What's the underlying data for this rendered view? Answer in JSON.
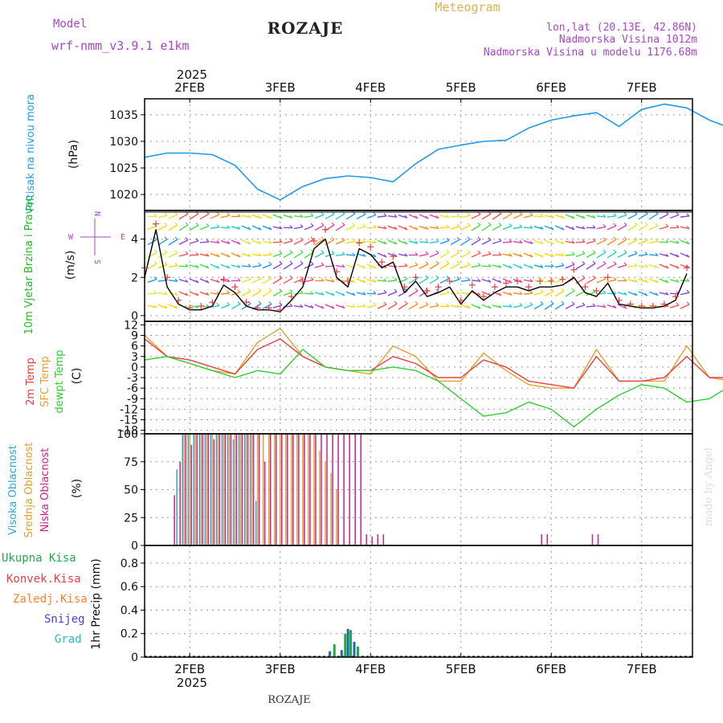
{
  "header": {
    "model_label": "Model",
    "model_name": "wrf-nmm_v3.9.1 e1km",
    "title": "ROZAJE",
    "subtitle": "Meteogram",
    "coords": "lon,lat (20.13E, 42.86N)",
    "elevation": "Nadmorska Visina 1012m",
    "model_elevation": "Nadmorska Visina u modelu 1176.68m"
  },
  "footer": {
    "station": "ROZAJE",
    "credit": "made by Angel"
  },
  "colors": {
    "pressure": "#1e9be6",
    "wind_label": "#22bb22",
    "temp2m": "#e84040",
    "sfc_temp": "#e0a030",
    "dewpt": "#33cc33",
    "high_cloud": "#2aa6d8",
    "mid_cloud": "#e0a030",
    "low_cloud": "#cc2288",
    "precip_total": "#22aa44",
    "precip_conv": "#e84040",
    "precip_frozen": "#ff8030",
    "snow": "#4444dd",
    "grad": "#22bbbb",
    "purple": "#aa44cc",
    "orange": "#e0b050"
  },
  "chart_data": [
    {
      "type": "line",
      "panel": "pressure",
      "ylabel": "Pritisak na nivou mora",
      "unit": "(hPa)",
      "ylim": [
        1017,
        1038
      ],
      "yticks": [
        1020,
        1025,
        1030,
        1035
      ],
      "x_day_start": 1.5,
      "x_step_days": 0.25,
      "series": [
        {
          "values": [
            1027,
            1027.8,
            1027.8,
            1027.5,
            1025.5,
            1021,
            1019,
            1021.5,
            1023,
            1023.5,
            1023.2,
            1022.4,
            1025.8,
            1028.5,
            1029.3,
            1030,
            1030.2,
            1032.5,
            1034,
            1034.8,
            1035.4,
            1032.8,
            1036,
            1037,
            1036.3,
            1034,
            1032.4,
            1032.8,
            1032.5,
            1031.2,
            1027.5
          ]
        }
      ]
    },
    {
      "type": "line",
      "panel": "wind",
      "ylabel": "10m Vjetar Brzina i Pravac",
      "unit": "(m/s)",
      "compass": [
        "N",
        "E",
        "S",
        "W"
      ],
      "ylim": [
        -0.3,
        5.5
      ],
      "yticks": [
        0,
        2,
        4
      ],
      "x_day_start": 1.5,
      "x_step_days": 0.125,
      "series": [
        {
          "name": "speed",
          "values": [
            2,
            4.5,
            1.5,
            0.6,
            0.3,
            0.3,
            0.5,
            1.6,
            1.2,
            0.5,
            0.3,
            0.3,
            0.2,
            0.8,
            1.5,
            3.5,
            4,
            2,
            1.5,
            3.5,
            3.2,
            2.5,
            2.8,
            1.2,
            1.8,
            1,
            1.2,
            1.5,
            0.6,
            1.3,
            0.8,
            1.2,
            1.5,
            1.5,
            1.3,
            1.5,
            1.5,
            1.6,
            2,
            1.2,
            1,
            1.7,
            0.6,
            0.5,
            0.4,
            0.4,
            0.5,
            0.8,
            2.2
          ]
        },
        {
          "name": "gust",
          "values": [
            2.5,
            4.8,
            2,
            0.8,
            0.4,
            0.5,
            0.7,
            1.9,
            1.5,
            0.7,
            0.4,
            0.4,
            0.3,
            1,
            1.8,
            3.9,
            4.5,
            2.3,
            1.8,
            3.8,
            3.6,
            2.8,
            3.1,
            1.5,
            2,
            1.3,
            1.5,
            1.8,
            0.8,
            1.6,
            1,
            1.5,
            1.7,
            1.8,
            1.5,
            1.8,
            1.8,
            1.9,
            2.4,
            1.5,
            1.3,
            2,
            0.8,
            0.6,
            0.5,
            0.5,
            0.6,
            1,
            2.5
          ]
        }
      ]
    },
    {
      "type": "line",
      "panel": "temperature",
      "ylabel": "2m Temp / SFC Temp / dewpt Temp",
      "unit": "(C)",
      "ylim": [
        -19,
        13
      ],
      "yticks": [
        12,
        9,
        6,
        3,
        0,
        -3,
        -6,
        -9,
        -12,
        -15,
        -18
      ],
      "x_day_start": 1.5,
      "x_step_days": 0.25,
      "series": [
        {
          "name": "2m Temp",
          "values": [
            8,
            3,
            2,
            0,
            -2,
            5,
            8,
            3,
            0,
            -1,
            -1,
            3,
            1,
            -3,
            -3,
            2,
            0,
            -4,
            -5,
            -6,
            3,
            -4,
            -4,
            -3,
            3,
            -3,
            -3,
            -3,
            -3,
            3,
            4
          ]
        },
        {
          "name": "SFC Temp",
          "values": [
            9,
            3,
            1,
            -1,
            -2,
            7,
            11,
            3,
            0,
            -1,
            -2,
            6,
            3,
            -4,
            -4,
            4,
            -1,
            -5,
            -6,
            -6,
            5,
            -4,
            -4,
            -4,
            6,
            -3,
            -4,
            -4,
            -5,
            7,
            8
          ]
        },
        {
          "name": "dewpt Temp",
          "values": [
            2,
            3,
            1,
            -1,
            -3,
            -1,
            -2,
            5,
            0,
            -1,
            -1,
            0,
            -1,
            -4,
            -9,
            -14,
            -13,
            -10,
            -12,
            -17,
            -12,
            -8,
            -5,
            -6,
            -10,
            -9,
            -5,
            -8,
            -8,
            -9,
            -6
          ]
        }
      ]
    },
    {
      "type": "bar",
      "panel": "clouds",
      "ylabel": "Visoka Oblacnost / Srednja Oblacnost / Niska Oblacnost",
      "unit": "(%)",
      "ylim": [
        0,
        100
      ],
      "yticks": [
        0,
        25,
        50,
        75,
        100
      ],
      "x_day_start": 1.5,
      "x_step_days": 0.0625,
      "series": [
        {
          "name": "Visoka Oblacnost",
          "values": [
            0,
            0,
            0,
            0,
            0,
            0,
            68,
            100,
            100,
            100,
            100,
            100,
            100,
            100,
            100,
            100,
            95,
            100,
            100,
            100,
            40,
            0,
            0,
            0,
            0,
            0,
            0,
            0,
            0,
            0,
            0,
            0,
            0,
            0,
            0,
            0,
            0,
            0,
            0,
            0,
            0,
            0,
            0,
            0,
            0,
            0,
            0,
            0,
            0,
            0,
            0,
            0,
            0,
            0,
            0,
            0,
            0,
            0,
            0,
            0,
            0,
            0,
            0,
            0,
            0,
            0,
            0,
            0,
            0,
            0,
            0,
            0,
            0,
            0,
            0,
            0,
            0,
            0,
            0,
            0,
            0,
            0,
            0,
            0,
            0,
            0,
            0,
            0,
            0,
            0,
            0,
            0,
            0,
            0,
            0,
            0,
            0
          ]
        },
        {
          "name": "Srednja Oblacnost",
          "values": [
            0,
            0,
            0,
            0,
            0,
            0,
            0,
            100,
            100,
            100,
            100,
            100,
            100,
            100,
            100,
            100,
            100,
            100,
            100,
            100,
            100,
            100,
            100,
            100,
            100,
            100,
            100,
            100,
            100,
            100,
            100,
            85,
            75,
            65,
            50,
            0,
            0,
            0,
            0,
            0,
            0,
            0,
            0,
            0,
            0,
            0,
            0,
            0,
            0,
            0,
            0,
            0,
            0,
            0,
            0,
            0,
            0,
            0,
            0,
            0,
            0,
            0,
            0,
            0,
            0,
            0,
            0,
            0,
            0,
            0,
            0,
            0,
            0,
            0,
            0,
            0,
            0,
            0,
            0,
            0,
            0,
            0,
            0,
            0,
            0,
            0,
            0,
            0,
            0,
            0,
            0,
            0,
            0,
            0,
            0,
            0,
            0
          ]
        },
        {
          "name": "Niska Oblacnost",
          "values": [
            0,
            0,
            0,
            0,
            0,
            45,
            75,
            100,
            90,
            100,
            100,
            100,
            95,
            100,
            100,
            100,
            100,
            100,
            100,
            100,
            100,
            75,
            100,
            100,
            100,
            100,
            100,
            100,
            100,
            100,
            100,
            100,
            100,
            100,
            100,
            100,
            100,
            100,
            100,
            10,
            8,
            10,
            10,
            0,
            0,
            0,
            0,
            0,
            0,
            0,
            0,
            0,
            0,
            0,
            0,
            0,
            0,
            0,
            0,
            0,
            0,
            0,
            0,
            0,
            0,
            0,
            0,
            0,
            0,
            0,
            10,
            10,
            0,
            0,
            0,
            0,
            0,
            0,
            0,
            10,
            10,
            0,
            0,
            0,
            0,
            0,
            0,
            0,
            0,
            0,
            0,
            0,
            0,
            0,
            0,
            0,
            0
          ]
        }
      ]
    },
    {
      "type": "bar",
      "panel": "precipitation",
      "ylabel": "1hr Precip (mm)",
      "legend": [
        "Ukupna Kisa",
        "Konvek.Kisa",
        "Zaledj.Kisa",
        "Snijeg",
        "Grad"
      ],
      "ylim": [
        0,
        0.95
      ],
      "yticks": [
        0,
        0.2,
        0.4,
        0.6,
        0.8
      ],
      "x_days": [
        1.8,
        3.29,
        3.55,
        3.6,
        3.68,
        3.72,
        3.75,
        3.78,
        3.82,
        3.86
      ],
      "values": [
        0.01,
        0.01,
        0.05,
        0.11,
        0.06,
        0.2,
        0.24,
        0.23,
        0.13,
        0.09
      ]
    }
  ],
  "x_axis": {
    "ticks": [
      "2FEB",
      "3FEB",
      "4FEB",
      "5FEB",
      "6FEB",
      "7FEB"
    ],
    "year": "2025",
    "xlim_days": [
      1.5,
      7.5
    ]
  }
}
